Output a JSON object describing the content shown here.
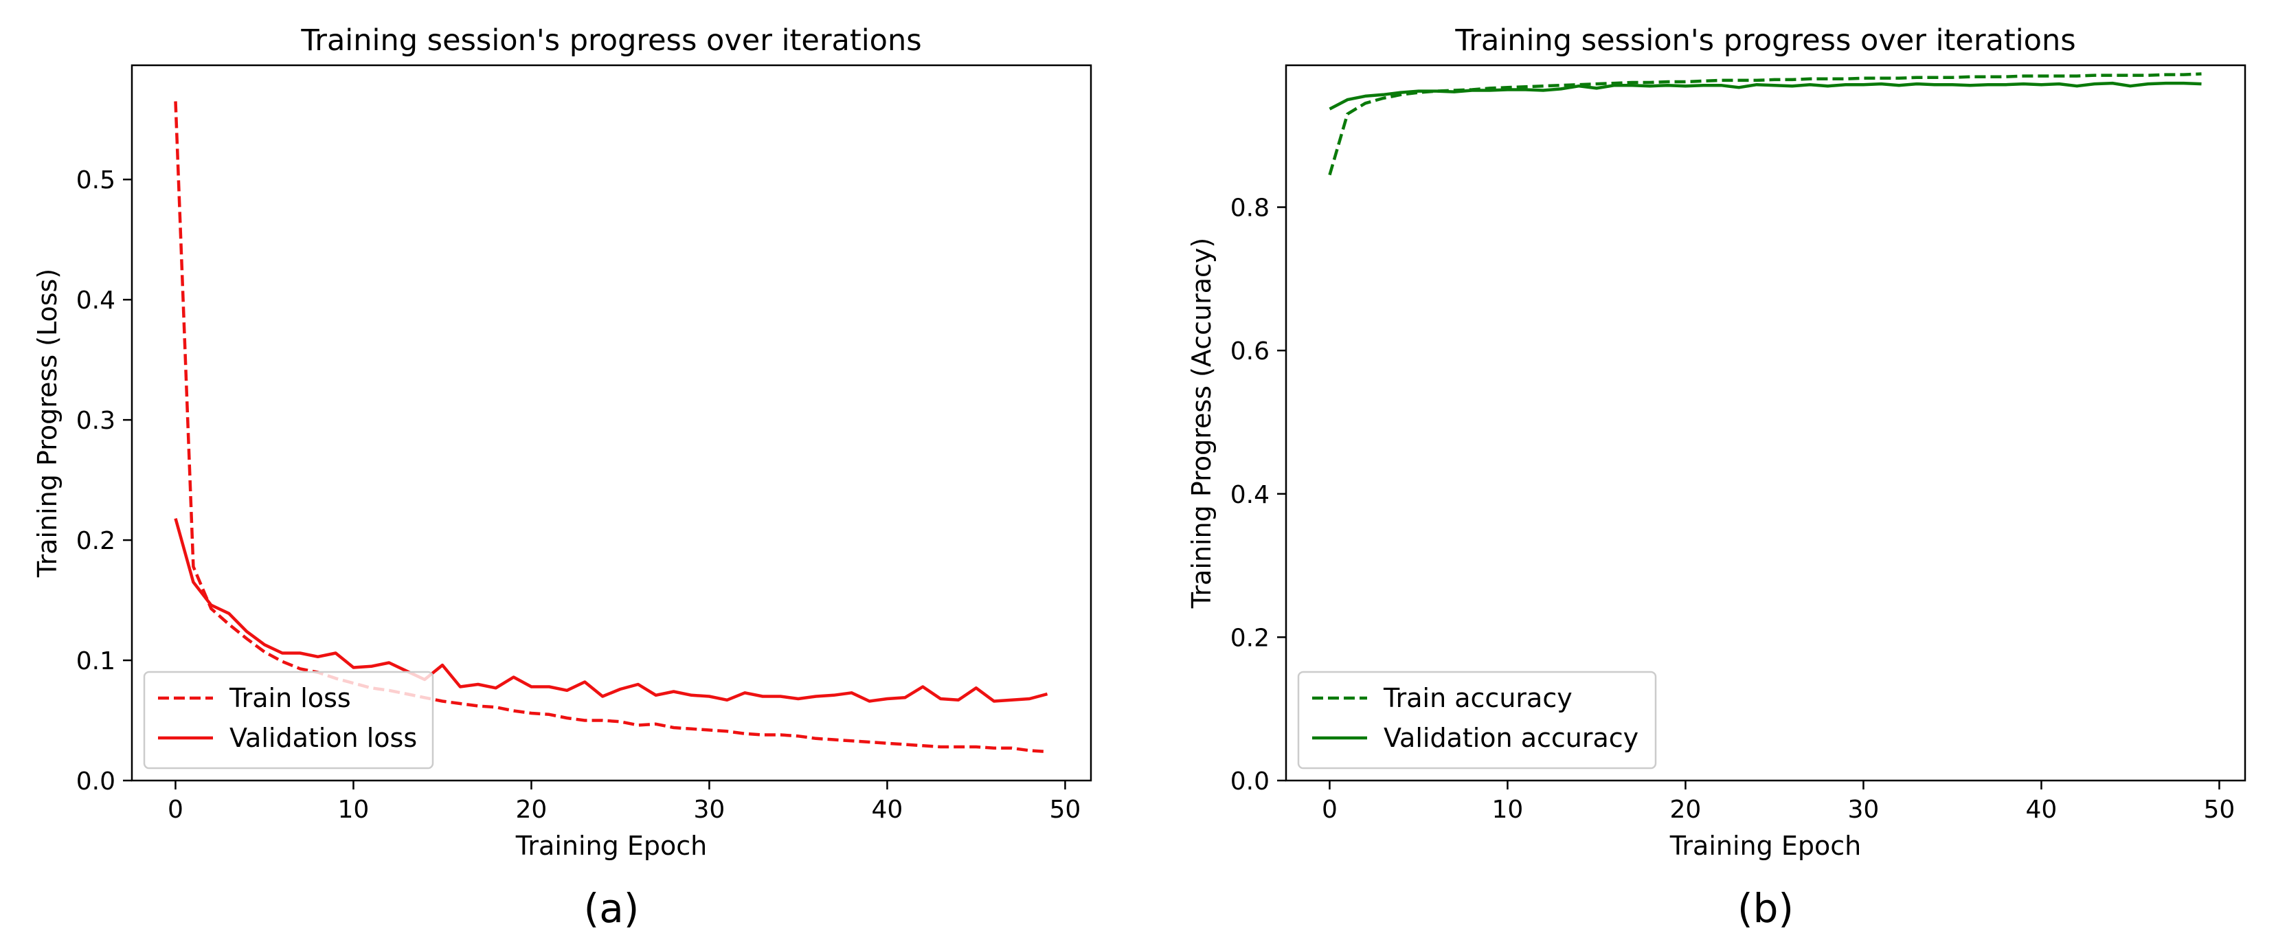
{
  "chart_data": [
    {
      "type": "line",
      "panel_label": "(a)",
      "title": "Training session's progress over iterations",
      "xlabel": "Training Epoch",
      "ylabel": "Training Progress (Loss)",
      "xlim": [
        -2.45,
        51.45
      ],
      "ylim": [
        0,
        0.595
      ],
      "xticks": [
        0,
        10,
        20,
        30,
        40,
        50
      ],
      "yticks": [
        0.0,
        0.1,
        0.2,
        0.3,
        0.4,
        0.5
      ],
      "ytick_format": 1,
      "grid": false,
      "legend_position": "lower-left",
      "color": "#ee1111",
      "series": [
        {
          "name": "Train loss",
          "style": "dashed",
          "x": [
            0,
            1,
            2,
            3,
            4,
            5,
            6,
            7,
            8,
            9,
            10,
            11,
            12,
            13,
            14,
            15,
            16,
            17,
            18,
            19,
            20,
            21,
            22,
            23,
            24,
            25,
            26,
            27,
            28,
            29,
            30,
            31,
            32,
            33,
            34,
            35,
            36,
            37,
            38,
            39,
            40,
            41,
            42,
            43,
            44,
            45,
            46,
            47,
            48,
            49
          ],
          "values": [
            0.565,
            0.178,
            0.143,
            0.13,
            0.118,
            0.107,
            0.099,
            0.093,
            0.09,
            0.085,
            0.081,
            0.077,
            0.075,
            0.072,
            0.069,
            0.066,
            0.064,
            0.062,
            0.061,
            0.058,
            0.056,
            0.055,
            0.052,
            0.05,
            0.05,
            0.049,
            0.046,
            0.047,
            0.044,
            0.043,
            0.042,
            0.041,
            0.039,
            0.038,
            0.038,
            0.037,
            0.035,
            0.034,
            0.033,
            0.032,
            0.031,
            0.03,
            0.029,
            0.028,
            0.028,
            0.028,
            0.027,
            0.027,
            0.025,
            0.024
          ]
        },
        {
          "name": "Validation loss",
          "style": "solid",
          "x": [
            0,
            1,
            2,
            3,
            4,
            5,
            6,
            7,
            8,
            9,
            10,
            11,
            12,
            13,
            14,
            15,
            16,
            17,
            18,
            19,
            20,
            21,
            22,
            23,
            24,
            25,
            26,
            27,
            28,
            29,
            30,
            31,
            32,
            33,
            34,
            35,
            36,
            37,
            38,
            39,
            40,
            41,
            42,
            43,
            44,
            45,
            46,
            47,
            48,
            49
          ],
          "values": [
            0.218,
            0.165,
            0.146,
            0.139,
            0.124,
            0.113,
            0.106,
            0.106,
            0.103,
            0.106,
            0.094,
            0.095,
            0.098,
            0.091,
            0.084,
            0.096,
            0.078,
            0.08,
            0.077,
            0.086,
            0.078,
            0.078,
            0.075,
            0.082,
            0.07,
            0.076,
            0.08,
            0.071,
            0.074,
            0.071,
            0.07,
            0.067,
            0.073,
            0.07,
            0.07,
            0.068,
            0.07,
            0.071,
            0.073,
            0.066,
            0.068,
            0.069,
            0.078,
            0.068,
            0.067,
            0.077,
            0.066,
            0.067,
            0.068,
            0.072
          ]
        }
      ]
    },
    {
      "type": "line",
      "panel_label": "(b)",
      "title": "Training session's progress over iterations",
      "xlabel": "Training Epoch",
      "ylabel": "Training Progress (Accuracy)",
      "xlim": [
        -2.45,
        51.45
      ],
      "ylim": [
        0,
        0.998
      ],
      "xticks": [
        0,
        10,
        20,
        30,
        40,
        50
      ],
      "yticks": [
        0.0,
        0.2,
        0.4,
        0.6,
        0.8
      ],
      "ytick_format": 1,
      "grid": false,
      "legend_position": "lower-left",
      "color": "#0a7a0a",
      "series": [
        {
          "name": "Train accuracy",
          "style": "dashed",
          "x": [
            0,
            1,
            2,
            3,
            4,
            5,
            6,
            7,
            8,
            9,
            10,
            11,
            12,
            13,
            14,
            15,
            16,
            17,
            18,
            19,
            20,
            21,
            22,
            23,
            24,
            25,
            26,
            27,
            28,
            29,
            30,
            31,
            32,
            33,
            34,
            35,
            36,
            37,
            38,
            39,
            40,
            41,
            42,
            43,
            44,
            45,
            46,
            47,
            48,
            49
          ],
          "values": [
            0.845,
            0.93,
            0.945,
            0.952,
            0.957,
            0.96,
            0.962,
            0.963,
            0.964,
            0.966,
            0.967,
            0.968,
            0.969,
            0.97,
            0.971,
            0.972,
            0.973,
            0.974,
            0.974,
            0.975,
            0.975,
            0.976,
            0.977,
            0.977,
            0.977,
            0.978,
            0.978,
            0.979,
            0.979,
            0.979,
            0.98,
            0.98,
            0.98,
            0.981,
            0.981,
            0.981,
            0.982,
            0.982,
            0.982,
            0.983,
            0.983,
            0.983,
            0.983,
            0.984,
            0.984,
            0.984,
            0.984,
            0.985,
            0.985,
            0.986
          ]
        },
        {
          "name": "Validation accuracy",
          "style": "solid",
          "x": [
            0,
            1,
            2,
            3,
            4,
            5,
            6,
            7,
            8,
            9,
            10,
            11,
            12,
            13,
            14,
            15,
            16,
            17,
            18,
            19,
            20,
            21,
            22,
            23,
            24,
            25,
            26,
            27,
            28,
            29,
            30,
            31,
            32,
            33,
            34,
            35,
            36,
            37,
            38,
            39,
            40,
            41,
            42,
            43,
            44,
            45,
            46,
            47,
            48,
            49
          ],
          "values": [
            0.937,
            0.95,
            0.955,
            0.957,
            0.96,
            0.962,
            0.962,
            0.961,
            0.963,
            0.963,
            0.964,
            0.964,
            0.963,
            0.965,
            0.969,
            0.966,
            0.97,
            0.97,
            0.969,
            0.97,
            0.969,
            0.97,
            0.97,
            0.967,
            0.971,
            0.97,
            0.969,
            0.971,
            0.969,
            0.971,
            0.971,
            0.972,
            0.97,
            0.972,
            0.971,
            0.971,
            0.97,
            0.971,
            0.971,
            0.972,
            0.971,
            0.972,
            0.969,
            0.972,
            0.973,
            0.969,
            0.972,
            0.973,
            0.973,
            0.972
          ]
        }
      ]
    }
  ]
}
